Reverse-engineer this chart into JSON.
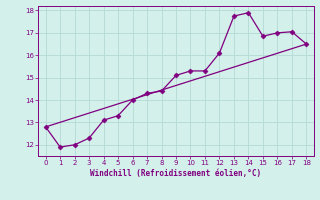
{
  "xlabel": "Windchill (Refroidissement éolien,°C)",
  "x": [
    0,
    1,
    2,
    3,
    4,
    5,
    6,
    7,
    8,
    9,
    10,
    11,
    12,
    13,
    14,
    15,
    16,
    17,
    18
  ],
  "y_curve": [
    12.8,
    11.9,
    12.0,
    12.3,
    13.1,
    13.3,
    14.0,
    14.3,
    14.4,
    15.1,
    15.3,
    15.3,
    16.1,
    17.75,
    17.9,
    16.85,
    17.0,
    17.05,
    16.5
  ],
  "trend_x": [
    0,
    18
  ],
  "trend_y": [
    12.8,
    16.5
  ],
  "line_color": "#800080",
  "marker": "D",
  "marker_size": 2.5,
  "bg_color": "#d4f0eb",
  "grid_color": "#b8ddd8",
  "tick_color": "#800080",
  "label_color": "#800080",
  "xlim": [
    -0.5,
    18.5
  ],
  "ylim": [
    11.5,
    18.2
  ],
  "yticks": [
    12,
    13,
    14,
    15,
    16,
    17,
    18
  ],
  "xticks": [
    0,
    1,
    2,
    3,
    4,
    5,
    6,
    7,
    8,
    9,
    10,
    11,
    12,
    13,
    14,
    15,
    16,
    17,
    18
  ]
}
